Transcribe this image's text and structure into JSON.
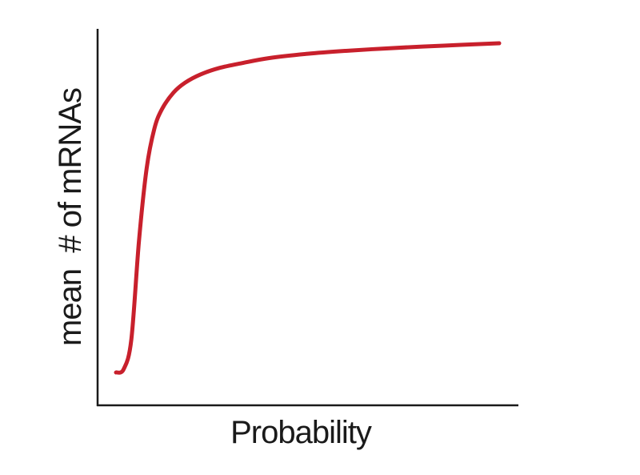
{
  "chart_data": {
    "type": "line",
    "title": "",
    "xlabel": "Probability",
    "ylabel": "mean  # of mRNAs",
    "grid": false,
    "legend": "none",
    "xlim": [
      0,
      1
    ],
    "ylim": [
      0,
      1
    ],
    "series": [
      {
        "color": "#c8202c",
        "x": [
          0.0,
          0.02,
          0.04,
          0.06,
          0.08,
          0.1,
          0.12,
          0.15,
          0.18,
          0.22,
          0.27,
          0.33,
          0.4,
          0.5,
          0.6,
          0.7,
          0.8,
          0.9,
          1.0
        ],
        "y": [
          0.0,
          0.01,
          0.1,
          0.4,
          0.62,
          0.74,
          0.8,
          0.85,
          0.88,
          0.905,
          0.925,
          0.94,
          0.955,
          0.968,
          0.977,
          0.984,
          0.99,
          0.995,
          1.0
        ]
      }
    ]
  }
}
